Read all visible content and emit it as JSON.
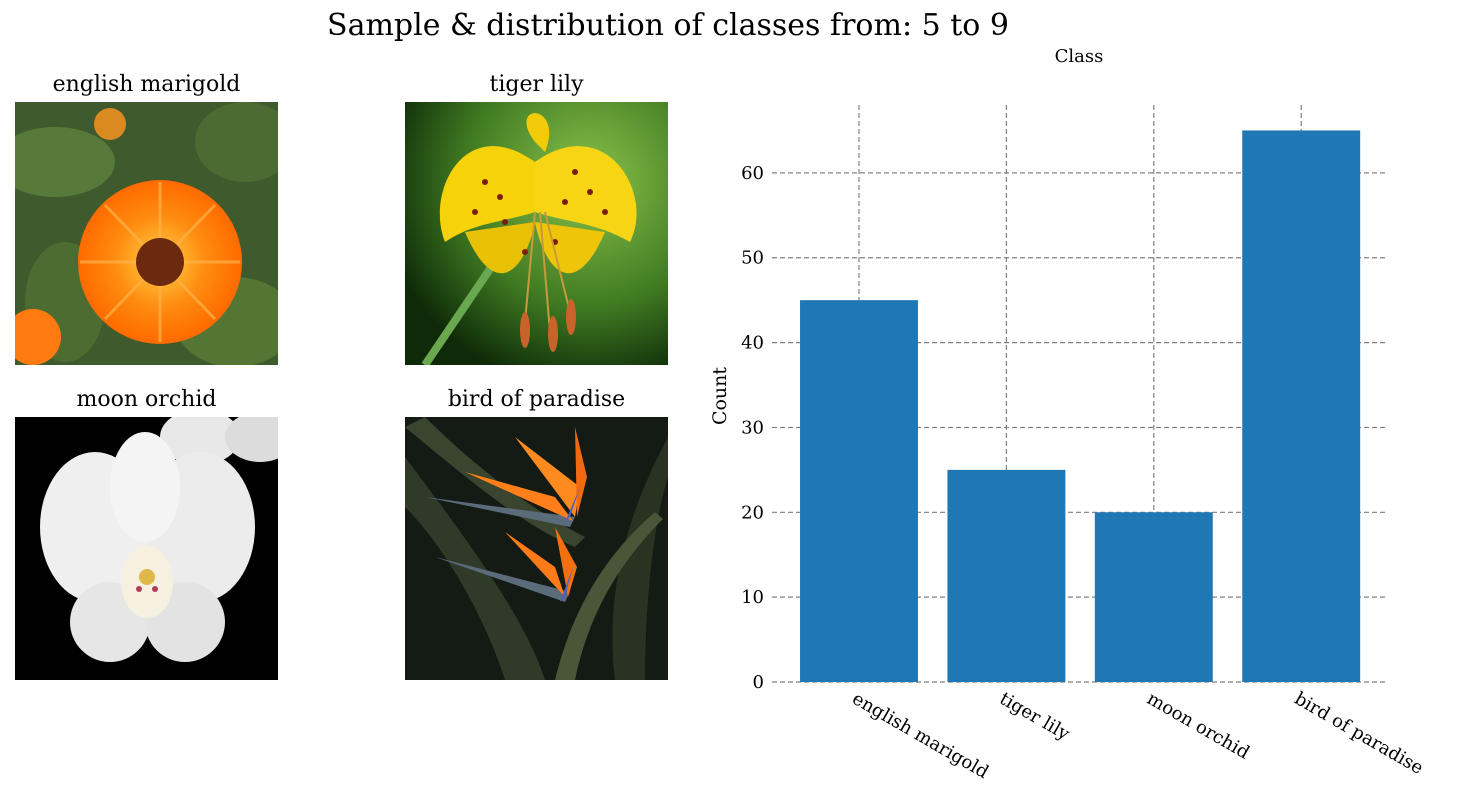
{
  "title": "Sample & distribution of classes from: 5 to 9",
  "samples": [
    {
      "label": "english marigold",
      "picture": "orange-marigold-flower"
    },
    {
      "label": "tiger lily",
      "picture": "yellow-spotted-tiger-lily"
    },
    {
      "label": "moon orchid",
      "picture": "white-moth-orchid"
    },
    {
      "label": "bird of paradise",
      "picture": "bird-of-paradise-flower"
    }
  ],
  "chart_data": {
    "type": "bar",
    "title": "Class",
    "xlabel": "",
    "ylabel": "Count",
    "categories": [
      "english marigold",
      "tiger lily",
      "moon orchid",
      "bird of paradise"
    ],
    "values": [
      45,
      25,
      20,
      65
    ],
    "ylim": [
      0,
      68
    ],
    "yticks": [
      0,
      10,
      20,
      30,
      40,
      50,
      60
    ],
    "grid": true,
    "bar_color": "#1f77b4",
    "grid_color": "#808080"
  }
}
